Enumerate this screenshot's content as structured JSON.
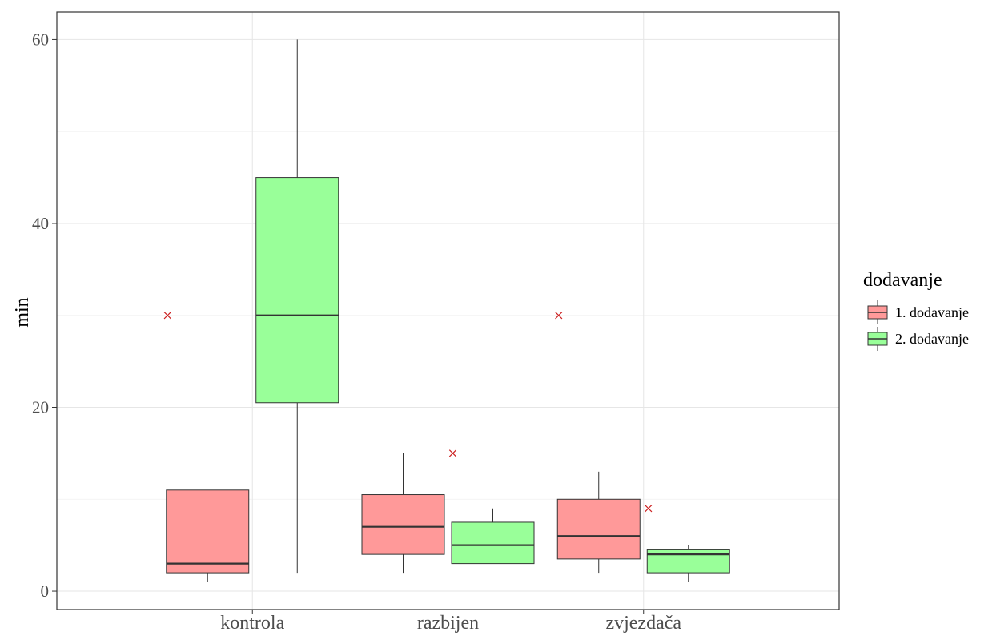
{
  "chart_data": {
    "type": "box",
    "title": "",
    "xlabel": "",
    "ylabel": "min",
    "ylim": [
      -2,
      63
    ],
    "yticks": [
      0,
      20,
      40,
      60
    ],
    "grid": true,
    "categories": [
      "kontrola",
      "razbijen",
      "zvjezdača"
    ],
    "legend": {
      "title": "dodavanje",
      "position": "right",
      "entries": [
        "1. dodavanje",
        "2. dodavanje"
      ]
    },
    "series": [
      {
        "name": "1. dodavanje",
        "color": "#ff9999",
        "boxes": [
          {
            "category": "kontrola",
            "whisker_low": 1,
            "q1": 2,
            "median": 3,
            "q3": 11,
            "whisker_high": 11,
            "mean": 30
          },
          {
            "category": "razbijen",
            "whisker_low": 2,
            "q1": 4,
            "median": 7,
            "q3": 10.5,
            "whisker_high": 15
          },
          {
            "category": "zvjezdača",
            "whisker_low": 2,
            "q1": 3.5,
            "median": 6,
            "q3": 10,
            "whisker_high": 13,
            "mean": 30
          }
        ]
      },
      {
        "name": "2. dodavanje",
        "color": "#99ff99",
        "boxes": [
          {
            "category": "kontrola",
            "whisker_low": 2,
            "q1": 20.5,
            "median": 30,
            "q3": 45,
            "whisker_high": 60
          },
          {
            "category": "razbijen",
            "whisker_low": 3,
            "q1": 3,
            "median": 5,
            "q3": 7.5,
            "whisker_high": 9,
            "mean": 15
          },
          {
            "category": "zvjezdača",
            "whisker_low": 1,
            "q1": 2,
            "median": 4,
            "q3": 4.5,
            "whisker_high": 5,
            "mean": 9
          }
        ]
      }
    ],
    "mean_marker": {
      "symbol": "×",
      "color": "#cc2222"
    },
    "colors": {
      "grid": "#e6e6e6",
      "axis_text": "#4d4d4d",
      "axis_title": "#000000",
      "border": "#333333"
    }
  }
}
